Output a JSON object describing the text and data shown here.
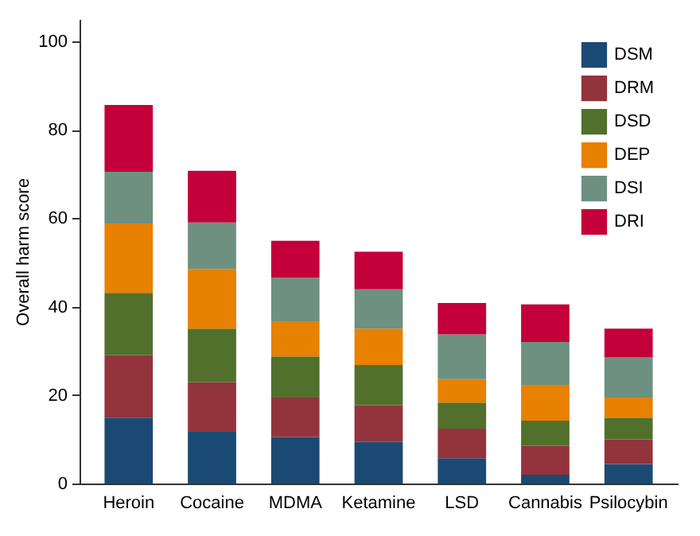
{
  "chart_data": {
    "type": "bar",
    "stacked": true,
    "ylabel": "Overall harm score",
    "categories": [
      "Heroin",
      "Cocaine",
      "MDMA",
      "Ketamine",
      "LSD",
      "Cannabis",
      "Psilocybin"
    ],
    "series": [
      {
        "name": "DSM",
        "color": "#1a4a74",
        "values": [
          14.9,
          11.7,
          10.5,
          9.4,
          5.7,
          2.0,
          4.4
        ]
      },
      {
        "name": "DRM",
        "color": "#93343c",
        "values": [
          14.1,
          11.2,
          8.9,
          8.3,
          6.7,
          6.5,
          5.6
        ]
      },
      {
        "name": "DSD",
        "color": "#50702c",
        "values": [
          14.1,
          12.1,
          9.3,
          9.1,
          5.9,
          5.7,
          4.9
        ]
      },
      {
        "name": "DEP",
        "color": "#e88000",
        "values": [
          15.7,
          13.5,
          8.0,
          8.2,
          5.3,
          8.1,
          4.5
        ]
      },
      {
        "name": "DSI",
        "color": "#6e9080",
        "values": [
          11.7,
          10.5,
          9.8,
          8.9,
          10.1,
          9.7,
          9.1
        ]
      },
      {
        "name": "DRI",
        "color": "#c4003a",
        "values": [
          15.1,
          11.7,
          8.4,
          8.5,
          7.1,
          8.5,
          6.5
        ]
      }
    ],
    "ylim": [
      0,
      105
    ],
    "yticks": [
      0,
      20,
      40,
      60,
      80,
      100
    ],
    "legend": "top right"
  }
}
